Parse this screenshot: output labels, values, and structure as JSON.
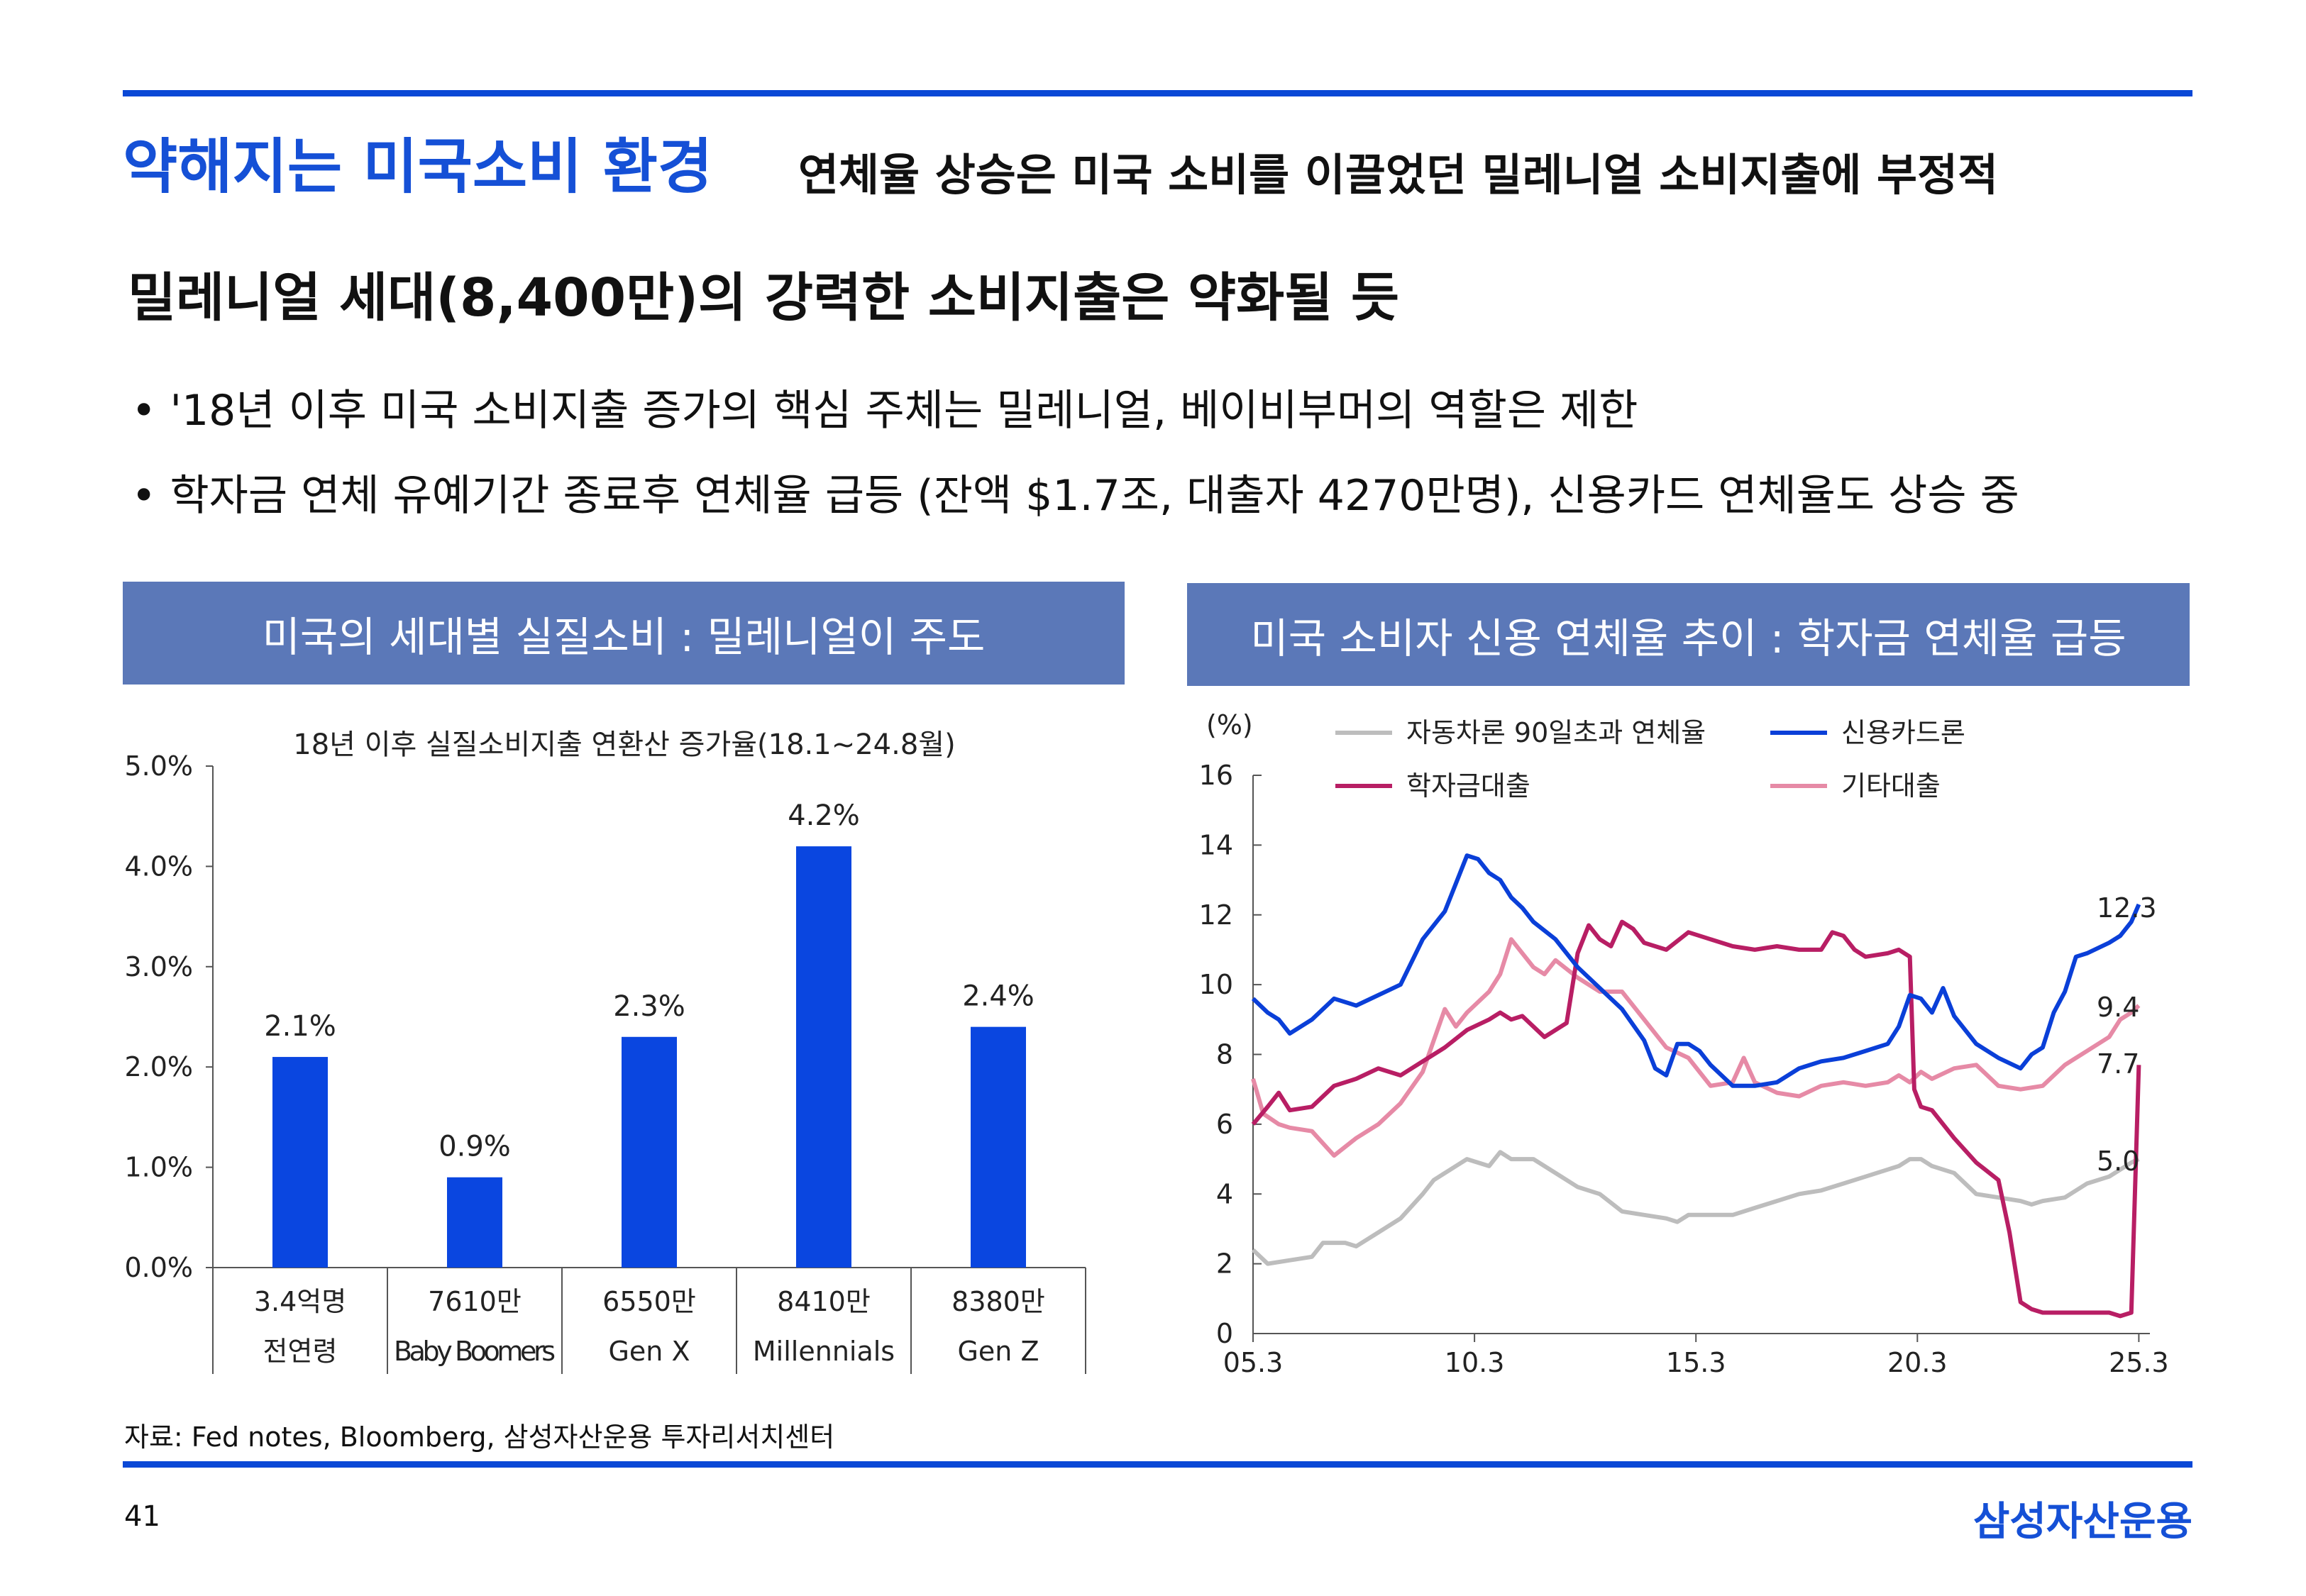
{
  "header": {
    "title": "약해지는 미국소비 환경",
    "subtitle": "연체율 상승은 미국 소비를 이끌었던 밀레니얼 소비지출에 부정적"
  },
  "headline": "밀레니얼 세대(8,400만)의 강력한 소비지출은 약화될 듯",
  "bullets": [
    "• '18년 이후 미국 소비지출 증가의 핵심 주체는 밀레니얼, 베이비부머의 역할은 제한",
    "• 학자금 연체 유예기간 종료후 연체율 급등 (잔액 $1.7조, 대출자 4270만명), 신용카드 연체율도 상승 중"
  ],
  "left_panel": {
    "header": "미국의 세대별 실질소비 : 밀레니얼이 주도"
  },
  "right_panel": {
    "header": "미국 소비자 신용 연체율 추이 : 학자금 연체율 급등"
  },
  "footer": {
    "source": "자료: Fed notes, Bloomberg, 삼성자산운용 투자리서치센터",
    "page_number": "41",
    "brand": "삼성자산운용"
  },
  "colors": {
    "accent": "#1550d6",
    "panel_header": "#5b78b8",
    "bar": "#0a46e0",
    "auto": "#bdbdbd",
    "card": "#0a3fd8",
    "student": "#b81e64",
    "other": "#e68aa6"
  },
  "chart_data": [
    {
      "type": "bar",
      "title": "18년 이후 실질소비지출 연환산 증가율(18.1~24.8월)",
      "categories": [
        "전연령",
        "Baby Boomers",
        "Gen X",
        "Millennials",
        "Gen Z"
      ],
      "category_counts": [
        "3.4억명",
        "7610만",
        "6550만",
        "8410만",
        "8380만"
      ],
      "values": [
        2.1,
        0.9,
        2.3,
        4.2,
        2.4
      ],
      "value_labels": [
        "2.1%",
        "0.9%",
        "2.3%",
        "4.2%",
        "2.4%"
      ],
      "ylim": [
        0,
        5
      ],
      "yticks": [
        "0.0%",
        "1.0%",
        "2.0%",
        "3.0%",
        "4.0%",
        "5.0%"
      ]
    },
    {
      "type": "line",
      "unit_label": "(%)",
      "ylim": [
        0,
        16
      ],
      "yticks": [
        "0",
        "2",
        "4",
        "6",
        "8",
        "10",
        "12",
        "14",
        "16"
      ],
      "xlim": [
        2005.17,
        2025.42
      ],
      "xticks": [
        {
          "x": 2005.17,
          "label": "05.3"
        },
        {
          "x": 2010.17,
          "label": "10.3"
        },
        {
          "x": 2015.17,
          "label": "15.3"
        },
        {
          "x": 2020.17,
          "label": "20.3"
        },
        {
          "x": 2025.17,
          "label": "25.3"
        }
      ],
      "series": [
        {
          "name": "자동차론 90일초과 연체율",
          "color": "#bdbdbd",
          "end_label": "5.0",
          "points": [
            [
              2005.17,
              2.4
            ],
            [
              2005.5,
              2.0
            ],
            [
              2006,
              2.1
            ],
            [
              2006.5,
              2.2
            ],
            [
              2006.75,
              2.6
            ],
            [
              2007.25,
              2.6
            ],
            [
              2007.5,
              2.5
            ],
            [
              2008,
              2.9
            ],
            [
              2008.5,
              3.3
            ],
            [
              2009,
              4.0
            ],
            [
              2009.25,
              4.4
            ],
            [
              2009.75,
              4.8
            ],
            [
              2010,
              5.0
            ],
            [
              2010.25,
              4.9
            ],
            [
              2010.5,
              4.8
            ],
            [
              2010.75,
              5.2
            ],
            [
              2011,
              5.0
            ],
            [
              2011.5,
              5.0
            ],
            [
              2012,
              4.6
            ],
            [
              2012.5,
              4.2
            ],
            [
              2013,
              4.0
            ],
            [
              2013.5,
              3.5
            ],
            [
              2014,
              3.4
            ],
            [
              2014.5,
              3.3
            ],
            [
              2014.75,
              3.2
            ],
            [
              2015,
              3.4
            ],
            [
              2015.5,
              3.4
            ],
            [
              2016,
              3.4
            ],
            [
              2016.5,
              3.6
            ],
            [
              2017,
              3.8
            ],
            [
              2017.5,
              4.0
            ],
            [
              2018,
              4.1
            ],
            [
              2018.5,
              4.3
            ],
            [
              2019,
              4.5
            ],
            [
              2019.5,
              4.7
            ],
            [
              2019.75,
              4.8
            ],
            [
              2020,
              5.0
            ],
            [
              2020.25,
              5.0
            ],
            [
              2020.5,
              4.8
            ],
            [
              2021,
              4.6
            ],
            [
              2021.5,
              4.0
            ],
            [
              2022,
              3.9
            ],
            [
              2022.5,
              3.8
            ],
            [
              2022.75,
              3.7
            ],
            [
              2023,
              3.8
            ],
            [
              2023.5,
              3.9
            ],
            [
              2024,
              4.3
            ],
            [
              2024.5,
              4.5
            ],
            [
              2025,
              4.9
            ],
            [
              2025.17,
              5.0
            ]
          ]
        },
        {
          "name": "신용카드론",
          "color": "#0a3fd8",
          "end_label": "12.3",
          "points": [
            [
              2005.17,
              9.6
            ],
            [
              2005.5,
              9.2
            ],
            [
              2005.75,
              9.0
            ],
            [
              2006,
              8.6
            ],
            [
              2006.5,
              9.0
            ],
            [
              2007,
              9.6
            ],
            [
              2007.5,
              9.4
            ],
            [
              2008,
              9.7
            ],
            [
              2008.5,
              10.0
            ],
            [
              2009,
              11.3
            ],
            [
              2009.5,
              12.1
            ],
            [
              2009.75,
              12.9
            ],
            [
              2010,
              13.7
            ],
            [
              2010.25,
              13.6
            ],
            [
              2010.5,
              13.2
            ],
            [
              2010.75,
              13.0
            ],
            [
              2011,
              12.5
            ],
            [
              2011.25,
              12.2
            ],
            [
              2011.5,
              11.8
            ],
            [
              2012,
              11.3
            ],
            [
              2012.5,
              10.5
            ],
            [
              2013,
              9.9
            ],
            [
              2013.5,
              9.3
            ],
            [
              2014,
              8.4
            ],
            [
              2014.25,
              7.6
            ],
            [
              2014.5,
              7.4
            ],
            [
              2014.75,
              8.3
            ],
            [
              2015,
              8.3
            ],
            [
              2015.25,
              8.1
            ],
            [
              2015.5,
              7.7
            ],
            [
              2016,
              7.1
            ],
            [
              2016.5,
              7.1
            ],
            [
              2017,
              7.2
            ],
            [
              2017.5,
              7.6
            ],
            [
              2018,
              7.8
            ],
            [
              2018.5,
              7.9
            ],
            [
              2019,
              8.1
            ],
            [
              2019.5,
              8.3
            ],
            [
              2019.75,
              8.8
            ],
            [
              2020,
              9.7
            ],
            [
              2020.25,
              9.6
            ],
            [
              2020.5,
              9.2
            ],
            [
              2020.75,
              9.9
            ],
            [
              2021,
              9.1
            ],
            [
              2021.5,
              8.3
            ],
            [
              2022,
              7.9
            ],
            [
              2022.5,
              7.6
            ],
            [
              2022.75,
              8.0
            ],
            [
              2023,
              8.2
            ],
            [
              2023.25,
              9.2
            ],
            [
              2023.5,
              9.8
            ],
            [
              2023.75,
              10.8
            ],
            [
              2024,
              10.9
            ],
            [
              2024.5,
              11.2
            ],
            [
              2024.75,
              11.4
            ],
            [
              2025,
              11.8
            ],
            [
              2025.17,
              12.3
            ]
          ]
        },
        {
          "name": "학자금대출",
          "color": "#b81e64",
          "end_label": "7.7",
          "points": [
            [
              2005.17,
              6.0
            ],
            [
              2005.5,
              6.5
            ],
            [
              2005.75,
              6.9
            ],
            [
              2006,
              6.4
            ],
            [
              2006.5,
              6.5
            ],
            [
              2007,
              7.1
            ],
            [
              2007.5,
              7.3
            ],
            [
              2008,
              7.6
            ],
            [
              2008.5,
              7.4
            ],
            [
              2009,
              7.8
            ],
            [
              2009.5,
              8.2
            ],
            [
              2010,
              8.7
            ],
            [
              2010.5,
              9.0
            ],
            [
              2010.75,
              9.2
            ],
            [
              2011,
              9.0
            ],
            [
              2011.25,
              9.1
            ],
            [
              2011.5,
              8.8
            ],
            [
              2011.75,
              8.5
            ],
            [
              2012,
              8.7
            ],
            [
              2012.25,
              8.9
            ],
            [
              2012.5,
              10.9
            ],
            [
              2012.75,
              11.7
            ],
            [
              2013,
              11.3
            ],
            [
              2013.25,
              11.1
            ],
            [
              2013.5,
              11.8
            ],
            [
              2013.75,
              11.6
            ],
            [
              2014,
              11.2
            ],
            [
              2014.5,
              11.0
            ],
            [
              2015,
              11.5
            ],
            [
              2015.5,
              11.3
            ],
            [
              2016,
              11.1
            ],
            [
              2016.5,
              11.0
            ],
            [
              2017,
              11.1
            ],
            [
              2017.5,
              11.0
            ],
            [
              2018,
              11.0
            ],
            [
              2018.25,
              11.5
            ],
            [
              2018.5,
              11.4
            ],
            [
              2018.75,
              11.0
            ],
            [
              2019,
              10.8
            ],
            [
              2019.5,
              10.9
            ],
            [
              2019.75,
              11.0
            ],
            [
              2020,
              10.8
            ],
            [
              2020.1,
              7.0
            ],
            [
              2020.25,
              6.5
            ],
            [
              2020.5,
              6.4
            ],
            [
              2021,
              5.6
            ],
            [
              2021.5,
              4.9
            ],
            [
              2022,
              4.4
            ],
            [
              2022.25,
              2.9
            ],
            [
              2022.5,
              0.9
            ],
            [
              2022.75,
              0.7
            ],
            [
              2023,
              0.6
            ],
            [
              2023.5,
              0.6
            ],
            [
              2024,
              0.6
            ],
            [
              2024.5,
              0.6
            ],
            [
              2024.75,
              0.5
            ],
            [
              2025,
              0.6
            ],
            [
              2025.17,
              7.7
            ]
          ]
        },
        {
          "name": "기타대출",
          "color": "#e68aa6",
          "end_label": "9.4",
          "points": [
            [
              2005.17,
              7.3
            ],
            [
              2005.4,
              6.3
            ],
            [
              2005.75,
              6.0
            ],
            [
              2006,
              5.9
            ],
            [
              2006.5,
              5.8
            ],
            [
              2007,
              5.1
            ],
            [
              2007.5,
              5.6
            ],
            [
              2008,
              6.0
            ],
            [
              2008.5,
              6.6
            ],
            [
              2009,
              7.5
            ],
            [
              2009.25,
              8.4
            ],
            [
              2009.5,
              9.3
            ],
            [
              2009.75,
              8.8
            ],
            [
              2010,
              9.2
            ],
            [
              2010.5,
              9.8
            ],
            [
              2010.75,
              10.3
            ],
            [
              2011,
              11.3
            ],
            [
              2011.25,
              10.9
            ],
            [
              2011.5,
              10.5
            ],
            [
              2011.75,
              10.3
            ],
            [
              2012,
              10.7
            ],
            [
              2012.5,
              10.2
            ],
            [
              2013,
              9.8
            ],
            [
              2013.5,
              9.8
            ],
            [
              2014,
              9.0
            ],
            [
              2014.5,
              8.2
            ],
            [
              2015,
              7.9
            ],
            [
              2015.5,
              7.1
            ],
            [
              2016,
              7.2
            ],
            [
              2016.25,
              7.9
            ],
            [
              2016.5,
              7.2
            ],
            [
              2017,
              6.9
            ],
            [
              2017.5,
              6.8
            ],
            [
              2018,
              7.1
            ],
            [
              2018.5,
              7.2
            ],
            [
              2019,
              7.1
            ],
            [
              2019.5,
              7.2
            ],
            [
              2019.75,
              7.4
            ],
            [
              2020,
              7.2
            ],
            [
              2020.25,
              7.5
            ],
            [
              2020.5,
              7.3
            ],
            [
              2021,
              7.6
            ],
            [
              2021.5,
              7.7
            ],
            [
              2022,
              7.1
            ],
            [
              2022.5,
              7.0
            ],
            [
              2023,
              7.1
            ],
            [
              2023.5,
              7.7
            ],
            [
              2024,
              8.1
            ],
            [
              2024.5,
              8.5
            ],
            [
              2024.75,
              9.0
            ],
            [
              2025,
              9.2
            ],
            [
              2025.17,
              9.4
            ]
          ]
        }
      ]
    }
  ]
}
